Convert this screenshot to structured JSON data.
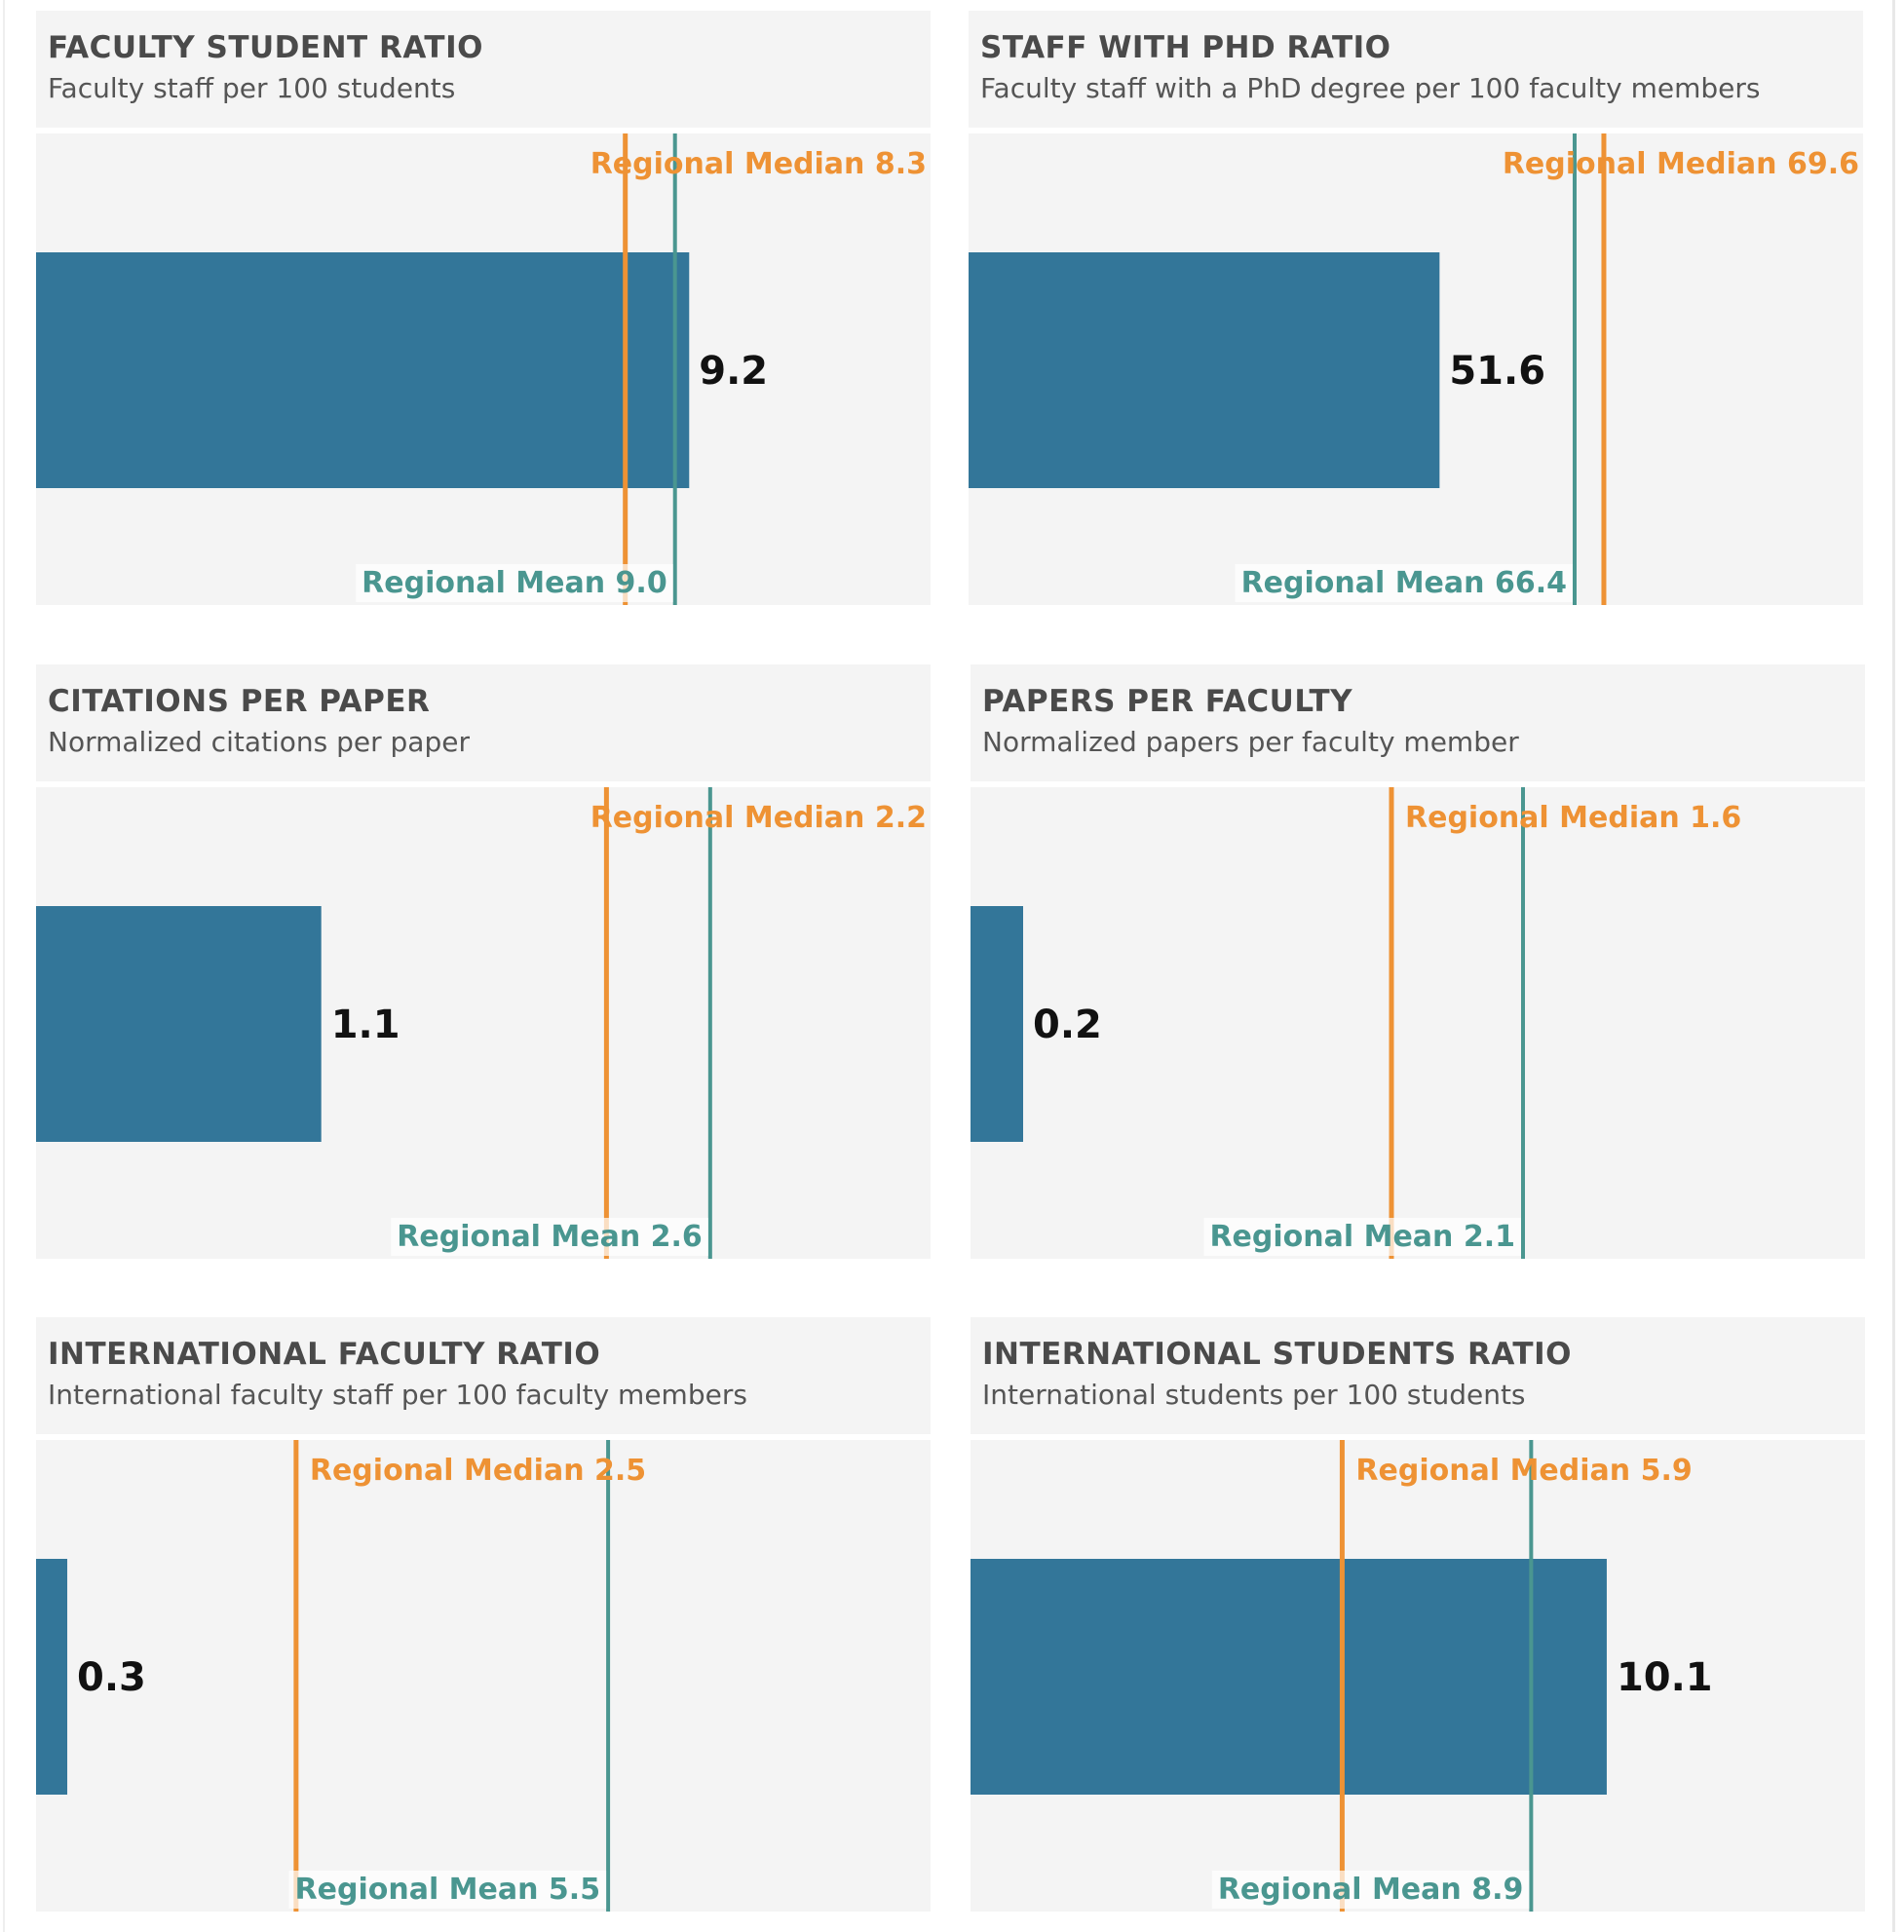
{
  "colors": {
    "bar": "#337699",
    "median": "#ee9234",
    "mean": "#4a9690",
    "panel_bg": "#f4f4f4"
  },
  "chart_data": [
    {
      "type": "bar",
      "title": "FACULTY STUDENT RATIO",
      "subtitle": "Faculty staff per 100 students",
      "values": [
        9.2
      ],
      "value_label": "9.2",
      "median": 8.3,
      "median_label": "Regional Median 8.3",
      "mean": 9.0,
      "mean_label": "Regional Mean 9.0",
      "xlim": [
        0,
        12.6
      ]
    },
    {
      "type": "bar",
      "title": "STAFF WITH PHD RATIO",
      "subtitle": "Faculty staff with a PhD degree per 100 faculty members",
      "values": [
        51.6
      ],
      "value_label": "51.6",
      "median": 69.6,
      "median_label": "Regional Median 69.6",
      "mean": 66.4,
      "mean_label": "Regional Mean 66.4",
      "xlim": [
        0,
        98
      ]
    },
    {
      "type": "bar",
      "title": "CITATIONS PER PAPER",
      "subtitle": "Normalized citations per paper",
      "values": [
        1.1
      ],
      "value_label": "1.1",
      "median": 2.2,
      "median_label": "Regional Median 2.2",
      "mean": 2.6,
      "mean_label": "Regional Mean 2.6",
      "xlim": [
        0,
        3.45
      ]
    },
    {
      "type": "bar",
      "title": "PAPERS PER FACULTY",
      "subtitle": "Normalized papers per faculty member",
      "values": [
        0.2
      ],
      "value_label": "0.2",
      "median": 1.6,
      "median_label": "Regional Median 1.6",
      "mean": 2.1,
      "mean_label": "Regional Mean 2.1",
      "xlim": [
        0,
        3.4
      ]
    },
    {
      "type": "bar",
      "title": "INTERNATIONAL FACULTY RATIO",
      "subtitle": "International faculty staff per 100 faculty members",
      "values": [
        0.3
      ],
      "value_label": "0.3",
      "median": 2.5,
      "median_label": "Regional Median 2.5",
      "mean": 5.5,
      "mean_label": "Regional Mean 5.5",
      "xlim": [
        0,
        8.6
      ]
    },
    {
      "type": "bar",
      "title": "INTERNATIONAL STUDENTS RATIO",
      "subtitle": "International students per 100 students",
      "values": [
        10.1
      ],
      "value_label": "10.1",
      "median": 5.9,
      "median_label": "Regional Median 5.9",
      "mean": 8.9,
      "mean_label": "Regional Mean 8.9",
      "xlim": [
        0,
        14.2
      ]
    }
  ]
}
